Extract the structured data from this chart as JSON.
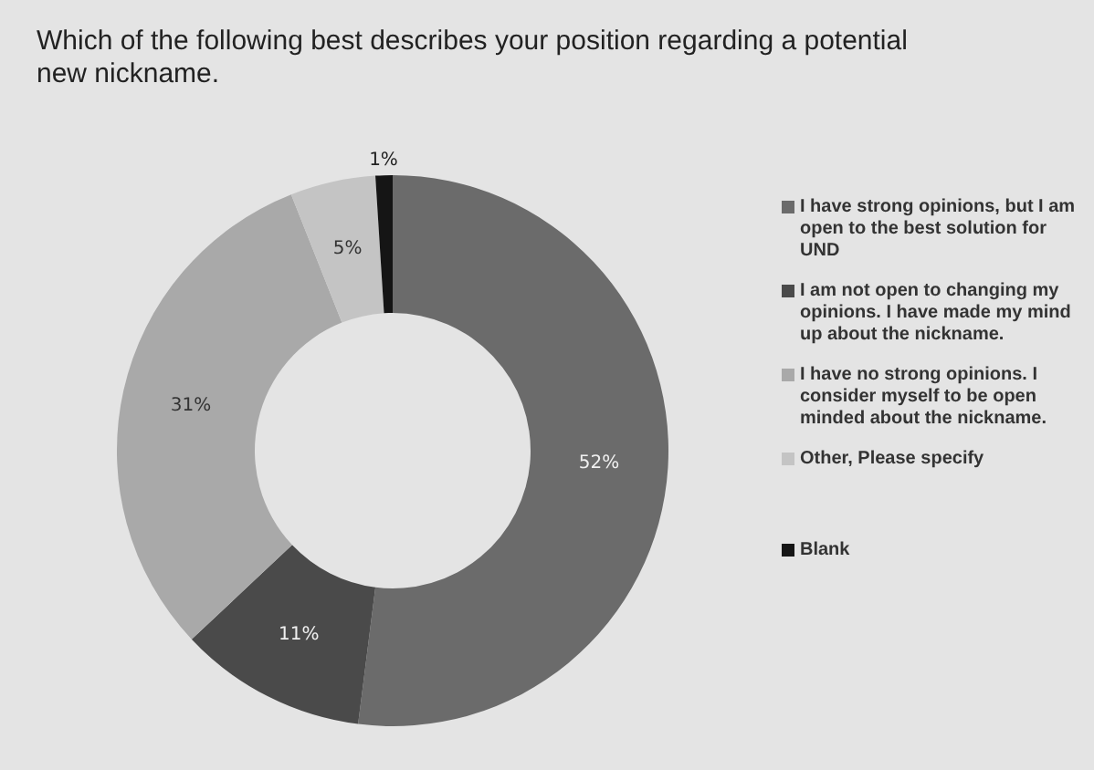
{
  "chart_data": {
    "type": "donut",
    "title": "Which of the following best describes your position regarding a potential new nickname.",
    "categories": [
      "I have strong opinions, but I am open to the best solution for UND",
      "I am not open to changing my opinions.  I have made my mind up about the nickname.",
      "I have no strong opinions.  I consider myself to be open minded about the nickname.",
      "Other, Please specify",
      "Blank"
    ],
    "values": [
      52,
      11,
      31,
      5,
      1
    ],
    "colors": [
      "#6b6b6b",
      "#4a4a4a",
      "#a9a9a9",
      "#c4c4c4",
      "#151515"
    ],
    "value_labels": [
      "52%",
      "11%",
      "31%",
      "5%",
      "1%"
    ],
    "legend": "right"
  }
}
